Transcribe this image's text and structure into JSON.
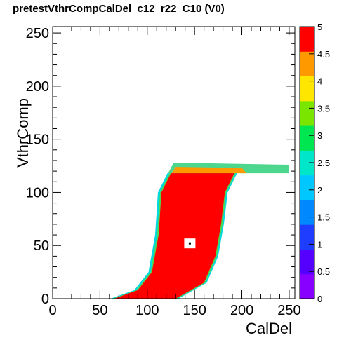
{
  "chart_data": {
    "type": "heatmap",
    "title": "pretestVthrCompCalDel_c12_r22_C10 (V0)",
    "xlabel": "CalDel",
    "ylabel": "VthrComp",
    "xlim": [
      0,
      256
    ],
    "ylim": [
      0,
      256
    ],
    "x_ticks": [
      "0",
      "50",
      "100",
      "150",
      "200",
      "250"
    ],
    "y_ticks": [
      "0",
      "50",
      "100",
      "150",
      "200",
      "250"
    ],
    "z_range": [
      0,
      5
    ],
    "z_ticks": [
      "0",
      "0.5",
      "1",
      "1.5",
      "2",
      "2.5",
      "3",
      "3.5",
      "4",
      "4.5",
      "5"
    ],
    "grid": false,
    "region": {
      "description_value": 5,
      "vthr_min": 0,
      "vthr_max": 122,
      "upper_tail_vthr": [
        118,
        126
      ],
      "upper_tail_caldel": [
        120,
        250
      ],
      "left_edge": [
        [
          65,
          0
        ],
        [
          90,
          8
        ],
        [
          105,
          25
        ],
        [
          112,
          60
        ],
        [
          115,
          100
        ],
        [
          125,
          118
        ]
      ],
      "right_edge": [
        [
          130,
          0
        ],
        [
          160,
          15
        ],
        [
          172,
          40
        ],
        [
          178,
          70
        ],
        [
          182,
          100
        ],
        [
          192,
          118
        ]
      ]
    },
    "marker": {
      "caldel": 145,
      "vthr": 52
    }
  },
  "colors": {
    "palette": [
      "#8800ff",
      "#5500ff",
      "#1f3dff",
      "#0088ff",
      "#00c8ff",
      "#00e6c8",
      "#00e650",
      "#7ae600",
      "#ffe600",
      "#ff9900",
      "#ff0000"
    ]
  }
}
